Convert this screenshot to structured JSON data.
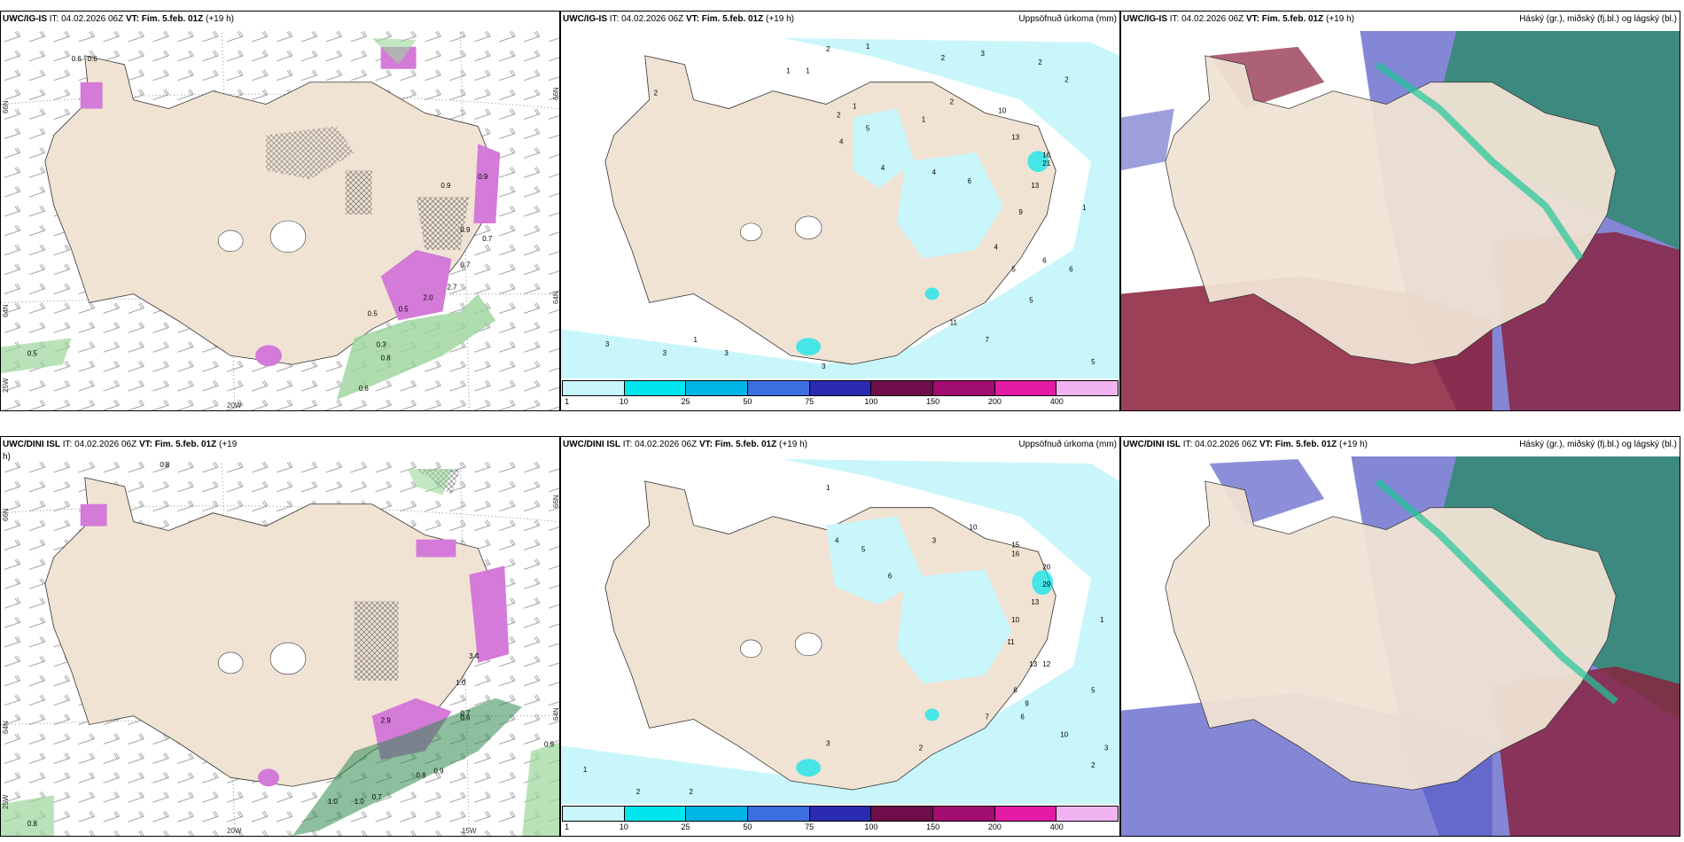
{
  "colors": {
    "land": "#f0e3d4",
    "precip_light": "#c8f6fb",
    "snow_purple": "#d47ad8",
    "green": "#9bd59b",
    "high_cloud_green": "#2f8a70",
    "mid_cloud_red": "#8a1e3a",
    "low_cloud_blue": "#5b5fc7"
  },
  "panels": [
    {
      "id": "top-left",
      "model": "UWC/IG-IS",
      "it_label": "IT: 04.02.2026 06Z",
      "vt_label": "VT: Fim. 5.feb. 01Z",
      "lead": "(+19 h)",
      "title_right": "",
      "lat_labels": [
        "66N",
        "64N",
        "25W"
      ],
      "lon_labels": [
        "20W"
      ],
      "right_lat_labels": [
        "66N",
        "64N"
      ],
      "values": [
        "0.5",
        "0.7",
        "0.5",
        "0.6",
        "0.6",
        "0.6",
        "0.8",
        "0.3",
        "2.0",
        "2.7",
        "0.9",
        "0.7",
        "0.9",
        "0.9",
        "0.5"
      ]
    },
    {
      "id": "top-middle",
      "model": "UWC/IG-IS",
      "it_label": "IT: 04.02.2026 06Z",
      "vt_label": "VT: Fim. 5.feb. 01Z",
      "lead": "(+19 h)",
      "title_right": "Uppsöfnuð úrkoma (mm)",
      "values": [
        "2",
        "1",
        "2",
        "3",
        "2",
        "2",
        "1",
        "1",
        "1",
        "2",
        "4",
        "5",
        "1",
        "2",
        "10",
        "13",
        "16",
        "21",
        "13",
        "9",
        "4",
        "5",
        "6",
        "6",
        "5",
        "11",
        "7",
        "5",
        "3",
        "3",
        "1",
        "3",
        "2",
        "3",
        "4",
        "6",
        "4",
        "1"
      ],
      "legend_ticks": [
        "1",
        "10",
        "25",
        "50",
        "75",
        "100",
        "150",
        "200",
        "400"
      ],
      "legend_colors": [
        "#c8f6fb",
        "#00e5ee",
        "#00b4e6",
        "#3b6fe0",
        "#2a2bb0",
        "#6e0d4a",
        "#a10e6f",
        "#e41ba6",
        "#f2b3f2"
      ]
    },
    {
      "id": "top-right",
      "model": "UWC/IG-IS",
      "it_label": "IT: 04.02.2026 06Z",
      "vt_label": "VT: Fim. 5.feb. 01Z",
      "lead": "(+19 h)",
      "title_right": "Háský (gr.), miðský (fj.bl.) og lágský (bl.)"
    },
    {
      "id": "bottom-left",
      "model": "UWC/DINI ISL",
      "it_label": "IT: 04.02.2026 06Z",
      "vt_label": "VT: Fim. 5.feb. 01Z",
      "lead": "(+19",
      "lead_wrap": "h)",
      "title_right": "",
      "lat_labels": [
        "66N",
        "64N",
        "25W"
      ],
      "lon_labels": [
        "20W",
        "15W"
      ],
      "right_lat_labels": [
        "66N",
        "64N"
      ],
      "values": [
        "0.8",
        "2.9",
        "0.8",
        "0.9",
        "0.7",
        "1.0",
        "0.9",
        "0.8",
        "0.7",
        "1.0",
        "1.0",
        "3.4",
        "0.6"
      ]
    },
    {
      "id": "bottom-middle",
      "model": "UWC/DINI ISL",
      "it_label": "IT: 04.02.2026 06Z",
      "vt_label": "VT: Fim. 5.feb. 01Z",
      "lead": "(+19 h)",
      "title_right": "Uppsöfnuð úrkoma (mm)",
      "values": [
        "1",
        "2",
        "2",
        "1",
        "4",
        "5",
        "6",
        "3",
        "10",
        "15",
        "16",
        "20",
        "29",
        "13",
        "12",
        "13",
        "10",
        "11",
        "8",
        "7",
        "6",
        "9",
        "5",
        "10",
        "3",
        "2",
        "2",
        "1",
        "3"
      ],
      "legend_ticks": [
        "1",
        "10",
        "25",
        "50",
        "75",
        "100",
        "150",
        "200",
        "400"
      ],
      "legend_colors": [
        "#c8f6fb",
        "#00e5ee",
        "#00b4e6",
        "#3b6fe0",
        "#2a2bb0",
        "#6e0d4a",
        "#a10e6f",
        "#e41ba6",
        "#f2b3f2"
      ]
    },
    {
      "id": "bottom-right",
      "model": "UWC/DINI ISL",
      "it_label": "IT: 04.02.2026 06Z",
      "vt_label": "VT: Fim. 5.feb. 01Z",
      "lead": "(+19 h)",
      "title_right": "Háský (gr.), miðský (fj.bl.) og lágský (bl.)"
    }
  ]
}
